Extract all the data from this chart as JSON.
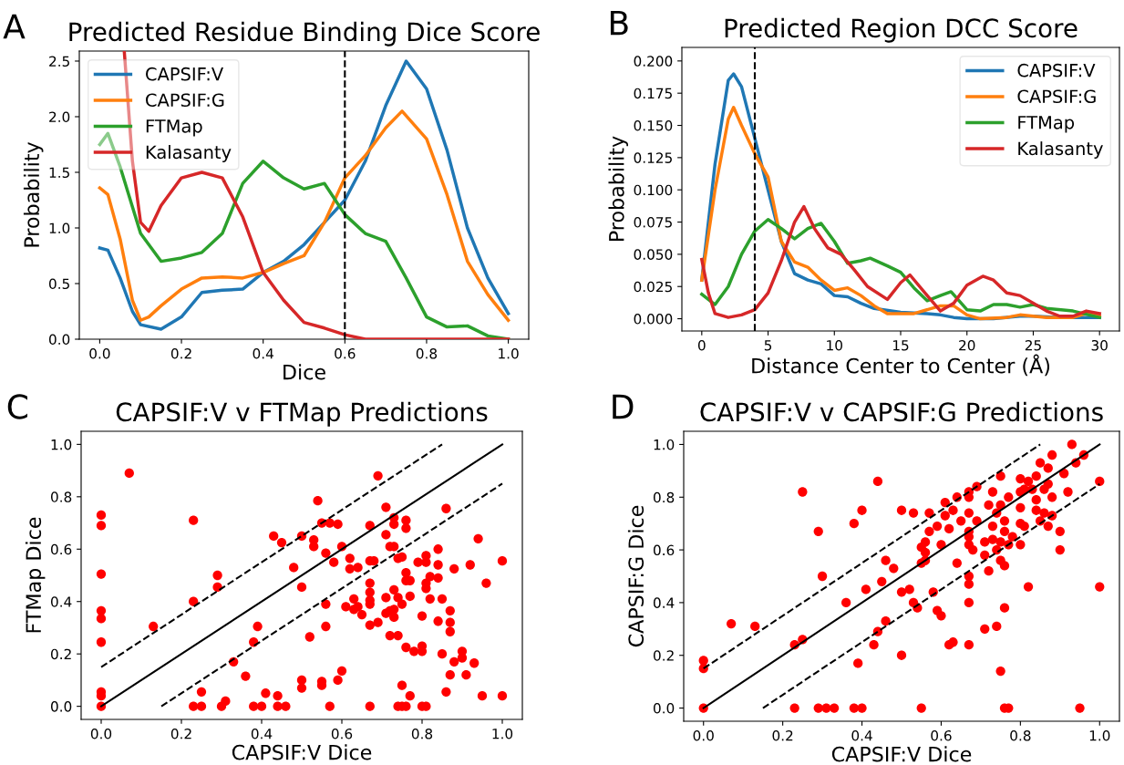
{
  "chart_data": [
    {
      "type": "line",
      "title": "Predicted Residue Binding Dice Score",
      "xlabel": "Dice",
      "ylabel": "Probability",
      "annotations": [
        "A"
      ],
      "legend": "top left",
      "xlim": [
        -0.05,
        1.05
      ],
      "ylim": [
        0,
        2.59
      ],
      "xticks": [
        {
          "value": 0,
          "label": "0.0"
        },
        {
          "value": 0.2,
          "label": "0.2"
        },
        {
          "value": 0.4,
          "label": "0.4"
        },
        {
          "value": 0.6,
          "label": "0.6"
        },
        {
          "value": 0.8,
          "label": "0.8"
        },
        {
          "value": 1,
          "label": "1.0"
        }
      ],
      "yticks": [
        {
          "value": 0,
          "label": "0.0"
        },
        {
          "value": 0.5,
          "label": "0.5"
        },
        {
          "value": 1,
          "label": "1.0"
        },
        {
          "value": 1.5,
          "label": "1.5"
        },
        {
          "value": 2,
          "label": "2.0"
        },
        {
          "value": 2.5,
          "label": "2.5"
        }
      ],
      "ref_lines": [
        {
          "axis": "x",
          "value": 0.6,
          "label": null,
          "color": "#000000",
          "line_style": "dashed"
        }
      ],
      "series": [
        {
          "name": "CAPSIF:V",
          "color": "#1f77b4",
          "x": [
            0,
            0.02,
            0.05,
            0.08,
            0.1,
            0.15,
            0.2,
            0.25,
            0.3,
            0.35,
            0.4,
            0.45,
            0.5,
            0.55,
            0.6,
            0.65,
            0.7,
            0.75,
            0.8,
            0.85,
            0.9,
            0.95,
            1.0
          ],
          "values": [
            0.82,
            0.8,
            0.55,
            0.25,
            0.13,
            0.09,
            0.2,
            0.42,
            0.44,
            0.45,
            0.6,
            0.7,
            0.85,
            1.05,
            1.25,
            1.6,
            2.1,
            2.5,
            2.25,
            1.7,
            1.0,
            0.55,
            0.23
          ]
        },
        {
          "name": "CAPSIF:G",
          "color": "#ff7f0e",
          "x": [
            0,
            0.02,
            0.05,
            0.08,
            0.1,
            0.12,
            0.15,
            0.2,
            0.25,
            0.3,
            0.35,
            0.4,
            0.45,
            0.5,
            0.55,
            0.6,
            0.65,
            0.7,
            0.74,
            0.8,
            0.85,
            0.9,
            0.95,
            1.0
          ],
          "values": [
            1.36,
            1.3,
            0.9,
            0.35,
            0.17,
            0.2,
            0.3,
            0.45,
            0.55,
            0.56,
            0.55,
            0.6,
            0.68,
            0.75,
            1.05,
            1.45,
            1.65,
            1.9,
            2.05,
            1.8,
            1.3,
            0.7,
            0.4,
            0.17
          ]
        },
        {
          "name": "FTMap",
          "color": "#2ca02c",
          "x": [
            0,
            0.02,
            0.05,
            0.1,
            0.15,
            0.2,
            0.25,
            0.3,
            0.35,
            0.4,
            0.45,
            0.5,
            0.55,
            0.6,
            0.65,
            0.7,
            0.75,
            0.8,
            0.85,
            0.9,
            0.95,
            1.0
          ],
          "values": [
            1.75,
            1.85,
            1.55,
            0.95,
            0.7,
            0.73,
            0.78,
            0.95,
            1.4,
            1.6,
            1.45,
            1.35,
            1.4,
            1.12,
            0.95,
            0.88,
            0.55,
            0.2,
            0.11,
            0.12,
            0.03,
            0.0
          ]
        },
        {
          "name": "Kalasanty",
          "color": "#d62728",
          "x": [
            0.06,
            0.08,
            0.1,
            0.12,
            0.15,
            0.2,
            0.25,
            0.3,
            0.35,
            0.4,
            0.45,
            0.5,
            0.55,
            0.6,
            0.65,
            0.7,
            0.8,
            0.9,
            1.0
          ],
          "values": [
            2.59,
            1.6,
            1.05,
            0.97,
            1.2,
            1.45,
            1.5,
            1.45,
            1.1,
            0.6,
            0.35,
            0.15,
            0.1,
            0.04,
            0,
            0,
            0,
            0,
            0
          ]
        }
      ]
    },
    {
      "type": "line",
      "title": "Predicted Region DCC Score",
      "xlabel": "Distance Center to Center (Å)",
      "ylabel": "Probability",
      "annotations": [
        "B"
      ],
      "legend": "top right",
      "xlim": [
        -1.5,
        31.5
      ],
      "ylim": [
        -0.0095,
        0.2105
      ],
      "xticks": [
        0,
        5,
        10,
        15,
        20,
        25,
        30
      ],
      "yticks": [
        {
          "value": 0,
          "label": "0.000"
        },
        {
          "value": 0.025,
          "label": "0.025"
        },
        {
          "value": 0.05,
          "label": "0.050"
        },
        {
          "value": 0.075,
          "label": "0.075"
        },
        {
          "value": 0.1,
          "label": "0.100"
        },
        {
          "value": 0.125,
          "label": "0.125"
        },
        {
          "value": 0.15,
          "label": "0.150"
        },
        {
          "value": 0.175,
          "label": "0.175"
        },
        {
          "value": 0.2,
          "label": "0.200"
        }
      ],
      "ref_lines": [
        {
          "axis": "x",
          "value": 4,
          "label": null,
          "color": "#000000",
          "line_style": "dashed"
        }
      ],
      "series": [
        {
          "name": "CAPSIF:V",
          "color": "#1f77b4",
          "x": [
            0,
            1,
            2,
            2.4,
            3,
            4,
            5,
            6,
            7,
            8,
            9,
            10,
            11,
            12,
            13,
            15,
            17,
            18,
            19,
            20,
            22,
            24,
            25,
            27,
            30
          ],
          "values": [
            0.03,
            0.12,
            0.185,
            0.19,
            0.18,
            0.14,
            0.1,
            0.06,
            0.035,
            0.03,
            0.027,
            0.018,
            0.017,
            0.012,
            0.008,
            0.005,
            0.004,
            0.003,
            0.001,
            0,
            0,
            0.002,
            0.002,
            0.001,
            0.001
          ]
        },
        {
          "name": "CAPSIF:G",
          "color": "#ff7f0e",
          "x": [
            0,
            1,
            2,
            2.4,
            3,
            4,
            5,
            6,
            7,
            8,
            9,
            10,
            11,
            12,
            13,
            14,
            16,
            18,
            19,
            20,
            21,
            23,
            24,
            26,
            28,
            29,
            30
          ],
          "values": [
            0.03,
            0.1,
            0.155,
            0.164,
            0.15,
            0.128,
            0.11,
            0.06,
            0.044,
            0.04,
            0.03,
            0.022,
            0.024,
            0.018,
            0.01,
            0.004,
            0.004,
            0.01,
            0.01,
            0.003,
            0,
            0.001,
            0.003,
            0.001,
            0.001,
            0.004,
            0.002
          ]
        },
        {
          "name": "FTMap",
          "color": "#2ca02c",
          "x": [
            0,
            1,
            2,
            3,
            4,
            5,
            6,
            7,
            8,
            9,
            10,
            11,
            12,
            12.7,
            14,
            15,
            16,
            17,
            18,
            18.8,
            20,
            21,
            22,
            23,
            24,
            25,
            26,
            28,
            30
          ],
          "values": [
            0.019,
            0.011,
            0.025,
            0.05,
            0.068,
            0.077,
            0.07,
            0.062,
            0.07,
            0.074,
            0.06,
            0.043,
            0.045,
            0.047,
            0.041,
            0.036,
            0.024,
            0.014,
            0.018,
            0.021,
            0.007,
            0.006,
            0.011,
            0.011,
            0.009,
            0.011,
            0.008,
            0.006,
            0.001
          ]
        },
        {
          "name": "Kalasanty",
          "color": "#d62728",
          "x": [
            0,
            0.5,
            1,
            2,
            3,
            4,
            5,
            6,
            7,
            7.7,
            8.5,
            9.5,
            10.5,
            11.5,
            12.5,
            14,
            15,
            15.7,
            17,
            18,
            19,
            20,
            21.2,
            22,
            23,
            24,
            25,
            26,
            27,
            28,
            29,
            30
          ],
          "values": [
            0.046,
            0.02,
            0.004,
            0.001,
            0.003,
            0.007,
            0.02,
            0.045,
            0.075,
            0.087,
            0.07,
            0.055,
            0.05,
            0.038,
            0.025,
            0.015,
            0.028,
            0.034,
            0.018,
            0.006,
            0.012,
            0.026,
            0.033,
            0.03,
            0.02,
            0.018,
            0.012,
            0.006,
            0.002,
            0.002,
            0.006,
            0.004
          ]
        }
      ]
    },
    {
      "type": "scatter",
      "title": "CAPSIF:V v FTMap Predictions",
      "xlabel": "CAPSIF:V Dice",
      "ylabel": "FTMap Dice",
      "annotations": [
        "C"
      ],
      "xlim": [
        -0.05,
        1.05
      ],
      "ylim": [
        -0.05,
        1.05
      ],
      "xticks": [
        {
          "value": 0,
          "label": "0.0"
        },
        {
          "value": 0.2,
          "label": "0.2"
        },
        {
          "value": 0.4,
          "label": "0.4"
        },
        {
          "value": 0.6,
          "label": "0.6"
        },
        {
          "value": 0.8,
          "label": "0.8"
        },
        {
          "value": 1,
          "label": "1.0"
        }
      ],
      "yticks": [
        {
          "value": 0,
          "label": "0.0"
        },
        {
          "value": 0.2,
          "label": "0.2"
        },
        {
          "value": 0.4,
          "label": "0.4"
        },
        {
          "value": 0.6,
          "label": "0.6"
        },
        {
          "value": 0.8,
          "label": "0.8"
        },
        {
          "value": 1,
          "label": "1.0"
        }
      ],
      "series": [
        {
          "type": "scatter",
          "color": "#ff0000",
          "marker": "circle",
          "x": [
            0,
            0,
            0,
            0,
            0,
            0,
            0,
            0,
            0,
            0.07,
            0.13,
            0.23,
            0.23,
            0.23,
            0.25,
            0.25,
            0.29,
            0.29,
            0.3,
            0.31,
            0.33,
            0.36,
            0.38,
            0.38,
            0.39,
            0.4,
            0.41,
            0.43,
            0.44,
            0.44,
            0.45,
            0.46,
            0.48,
            0.5,
            0.5,
            0.5,
            0.5,
            0.52,
            0.53,
            0.53,
            0.54,
            0.55,
            0.55,
            0.55,
            0.56,
            0.56,
            0.56,
            0.57,
            0.57,
            0.58,
            0.59,
            0.59,
            0.6,
            0.6,
            0.61,
            0.62,
            0.62,
            0.63,
            0.63,
            0.64,
            0.64,
            0.65,
            0.67,
            0.67,
            0.67,
            0.67,
            0.67,
            0.67,
            0.67,
            0.67,
            0.68,
            0.69,
            0.69,
            0.71,
            0.71,
            0.71,
            0.71,
            0.72,
            0.72,
            0.72,
            0.73,
            0.73,
            0.73,
            0.73,
            0.73,
            0.73,
            0.74,
            0.74,
            0.74,
            0.74,
            0.75,
            0.75,
            0.75,
            0.75,
            0.76,
            0.76,
            0.76,
            0.76,
            0.76,
            0.76,
            0.77,
            0.77,
            0.77,
            0.78,
            0.79,
            0.8,
            0.8,
            0.8,
            0.8,
            0.81,
            0.81,
            0.81,
            0.81,
            0.81,
            0.82,
            0.82,
            0.84,
            0.84,
            0.84,
            0.84,
            0.85,
            0.85,
            0.86,
            0.86,
            0.87,
            0.87,
            0.87,
            0.87,
            0.88,
            0.88,
            0.9,
            0.9,
            0.91,
            0.92,
            0.93,
            0.94,
            0.95,
            0.96,
            1.0,
            1.0
          ],
          "values": [
            0,
            0.04,
            0.055,
            0.245,
            0.335,
            0.365,
            0.505,
            0.69,
            0.73,
            0.89,
            0.305,
            0.71,
            0.4,
            0,
            0,
            0.055,
            0.5,
            0.455,
            0,
            0.02,
            0.17,
            0.115,
            0,
            0.245,
            0.305,
            0,
            0.05,
            0.65,
            0.04,
            0,
            0.625,
            0,
            0.53,
            0.65,
            0.455,
            0.1,
            0.07,
            0.265,
            0.635,
            0.61,
            0.785,
            0.7,
            0.095,
            0.08,
            0.585,
            0.39,
            0.305,
            0.7,
            0,
            0.55,
            0.695,
            0.1,
            0.61,
            0.135,
            0.38,
            0.565,
            0.525,
            0.41,
            0.37,
            0.53,
            0.38,
            0.35,
            0.69,
            0.555,
            0.47,
            0.435,
            0.405,
            0.39,
            0.31,
            0,
            0.555,
            0.88,
            0.32,
            0.76,
            0.655,
            0.415,
            0.355,
            0.61,
            0.27,
            0.365,
            0.72,
            0.695,
            0.61,
            0.445,
            0.34,
            0.37,
            0.565,
            0.415,
            0.27,
            0,
            0.57,
            0.39,
            0.08,
            0,
            0.71,
            0.68,
            0.51,
            0.48,
            0.225,
            0,
            0.48,
            0.42,
            0.04,
            0.21,
            0.55,
            0.345,
            0.23,
            0.21,
            0,
            0.575,
            0.55,
            0.47,
            0.45,
            0,
            0.495,
            0.41,
            0.6,
            0.54,
            0.49,
            0.325,
            0.41,
            0.2,
            0.755,
            0.055,
            0.365,
            0.32,
            0.285,
            0.12,
            0.525,
            0.17,
            0.21,
            0.185,
            0.12,
            0.54,
            0.165,
            0.64,
            0.04,
            0.47,
            0.555,
            0.04
          ]
        },
        {
          "type": "line",
          "color": "#000000",
          "line_style": "solid",
          "x": [
            0,
            1
          ],
          "values": [
            0,
            1
          ]
        },
        {
          "type": "line",
          "color": "#000000",
          "line_style": "dashed",
          "x": [
            0,
            0.85
          ],
          "values": [
            0.15,
            1
          ]
        },
        {
          "type": "line",
          "color": "#000000",
          "line_style": "dashed",
          "x": [
            0.15,
            1
          ],
          "values": [
            0,
            0.85
          ]
        }
      ]
    },
    {
      "type": "scatter",
      "title": "CAPSIF:V v CAPSIF:G Predictions",
      "xlabel": "CAPSIF:V Dice",
      "ylabel": "CAPSIF:G Dice",
      "annotations": [
        "D"
      ],
      "xlim": [
        -0.05,
        1.05
      ],
      "ylim": [
        -0.05,
        1.05
      ],
      "xticks": [
        {
          "value": 0,
          "label": "0.0"
        },
        {
          "value": 0.2,
          "label": "0.2"
        },
        {
          "value": 0.4,
          "label": "0.4"
        },
        {
          "value": 0.6,
          "label": "0.6"
        },
        {
          "value": 0.8,
          "label": "0.8"
        },
        {
          "value": 1,
          "label": "1.0"
        }
      ],
      "yticks": [
        {
          "value": 0,
          "label": "0.0"
        },
        {
          "value": 0.2,
          "label": "0.2"
        },
        {
          "value": 0.4,
          "label": "0.4"
        },
        {
          "value": 0.6,
          "label": "0.6"
        },
        {
          "value": 0.8,
          "label": "0.8"
        },
        {
          "value": 1,
          "label": "1.0"
        }
      ],
      "series": [
        {
          "type": "scatter",
          "color": "#ff0000",
          "marker": "circle",
          "x": [
            0,
            0,
            0,
            0.07,
            0.13,
            0.23,
            0.23,
            0.25,
            0.25,
            0.29,
            0.29,
            0.3,
            0.31,
            0.33,
            0.36,
            0.38,
            0.38,
            0.39,
            0.4,
            0.4,
            0.41,
            0.43,
            0.44,
            0.44,
            0.45,
            0.46,
            0.46,
            0.48,
            0.5,
            0.5,
            0.5,
            0.52,
            0.53,
            0.53,
            0.54,
            0.55,
            0.55,
            0.55,
            0.56,
            0.56,
            0.56,
            0.57,
            0.57,
            0.58,
            0.59,
            0.59,
            0.6,
            0.6,
            0.61,
            0.61,
            0.62,
            0.62,
            0.63,
            0.63,
            0.64,
            0.64,
            0.65,
            0.67,
            0.67,
            0.67,
            0.67,
            0.67,
            0.67,
            0.67,
            0.67,
            0.67,
            0.67,
            0.68,
            0.69,
            0.69,
            0.71,
            0.71,
            0.71,
            0.72,
            0.72,
            0.73,
            0.73,
            0.73,
            0.74,
            0.74,
            0.74,
            0.75,
            0.75,
            0.75,
            0.75,
            0.75,
            0.76,
            0.76,
            0.76,
            0.76,
            0.76,
            0.77,
            0.77,
            0.77,
            0.78,
            0.8,
            0.8,
            0.8,
            0.8,
            0.8,
            0.81,
            0.81,
            0.82,
            0.82,
            0.83,
            0.84,
            0.84,
            0.84,
            0.85,
            0.85,
            0.86,
            0.86,
            0.87,
            0.87,
            0.87,
            0.88,
            0.88,
            0.88,
            0.9,
            0.9,
            0.91,
            0.92,
            0.93,
            0.94,
            0.95,
            0.96,
            1.0,
            1.0
          ],
          "values": [
            0,
            0.15,
            0.18,
            0.32,
            0.31,
            0,
            0.24,
            0.26,
            0.82,
            0,
            0.67,
            0.5,
            0,
            0,
            0.4,
            0,
            0.7,
            0.17,
            0,
            0.75,
            0.45,
            0.24,
            0.86,
            0.29,
            0.48,
            0.56,
            0.33,
            0.53,
            0.75,
            0.44,
            0.2,
            0.45,
            0.74,
            0.4,
            0.38,
            0.61,
            0.55,
            0,
            0.63,
            0.59,
            0.56,
            0.74,
            0.67,
            0.44,
            0.69,
            0.37,
            0.62,
            0.35,
            0.78,
            0.73,
            0.68,
            0.24,
            0.75,
            0.25,
            0.8,
            0.55,
            0.71,
            0.82,
            0.8,
            0.74,
            0.67,
            0.65,
            0.62,
            0.5,
            0.47,
            0.4,
            0.24,
            0.6,
            0.84,
            0.71,
            0.63,
            0.58,
            0.3,
            0.77,
            0.52,
            0.82,
            0.69,
            0.64,
            0.74,
            0.6,
            0.31,
            0.88,
            0.77,
            0.63,
            0.56,
            0.14,
            0.71,
            0.67,
            0.54,
            0.38,
            0,
            0.8,
            0,
            0.62,
            0.65,
            0.87,
            0.82,
            0.76,
            0.7,
            0.62,
            0.83,
            0.69,
            0.86,
            0.46,
            0.83,
            0.88,
            0.79,
            0.75,
            0.93,
            0.71,
            0.83,
            0.74,
            0.91,
            0.85,
            0.69,
            0.96,
            0.8,
            0.73,
            0.67,
            0.6,
            0.89,
            0.82,
            1.0,
            0.93,
            0,
            0.96,
            0.86,
            0.46
          ]
        },
        {
          "type": "line",
          "color": "#000000",
          "line_style": "solid",
          "x": [
            0,
            1
          ],
          "values": [
            0,
            1
          ]
        },
        {
          "type": "line",
          "color": "#000000",
          "line_style": "dashed",
          "x": [
            0,
            0.85
          ],
          "values": [
            0.15,
            1
          ]
        },
        {
          "type": "line",
          "color": "#000000",
          "line_style": "dashed",
          "x": [
            0.15,
            1
          ],
          "values": [
            0,
            0.85
          ]
        }
      ]
    }
  ]
}
